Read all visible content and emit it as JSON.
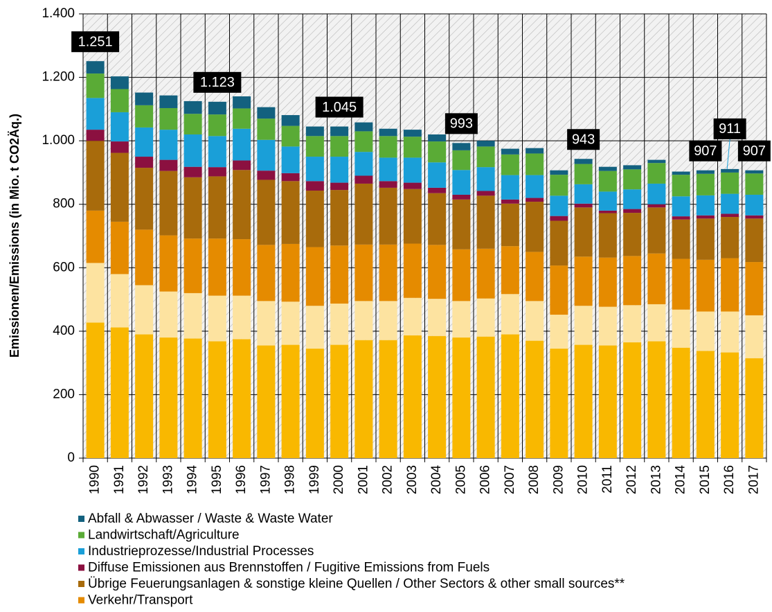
{
  "chart_data": {
    "type": "bar",
    "stacked": true,
    "y_label": "Emissionen/Emissions (in Mio. t CO2Äq.)",
    "categories": [
      "1990",
      "1991",
      "1992",
      "1993",
      "1994",
      "1995",
      "1996",
      "1997",
      "1998",
      "1999",
      "2000",
      "2001",
      "2002",
      "2003",
      "2004",
      "2005",
      "2006",
      "2007",
      "2008",
      "2009",
      "2010",
      "2011",
      "2012",
      "2013",
      "2014",
      "2015",
      "2016",
      "2017"
    ],
    "series": [
      {
        "color": "#f9b800",
        "values": [
          427,
          412,
          390,
          380,
          377,
          368,
          375,
          355,
          357,
          345,
          357,
          372,
          372,
          387,
          385,
          380,
          383,
          390,
          370,
          345,
          357,
          355,
          365,
          368,
          348,
          338,
          333,
          315
        ]
      },
      {
        "color": "#fde3a0",
        "values": [
          188,
          168,
          155,
          145,
          143,
          144,
          137,
          140,
          136,
          135,
          130,
          123,
          123,
          118,
          117,
          115,
          120,
          127,
          125,
          107,
          123,
          122,
          117,
          117,
          120,
          124,
          129,
          135
        ]
      },
      {
        "name": "Verkehr/Transport",
        "color": "#e58b00",
        "values": [
          165,
          165,
          175,
          177,
          172,
          180,
          178,
          177,
          182,
          185,
          183,
          178,
          178,
          171,
          170,
          163,
          157,
          151,
          155,
          155,
          155,
          155,
          155,
          160,
          160,
          163,
          168,
          168
        ]
      },
      {
        "name": "Übrige Feuerungsanlagen & sonstige kleine Quellen / Other Sectors & other small sources**",
        "color": "#a86b0c",
        "values": [
          220,
          217,
          195,
          203,
          193,
          196,
          218,
          205,
          198,
          178,
          175,
          192,
          179,
          172,
          163,
          157,
          167,
          134,
          158,
          141,
          155,
          140,
          136,
          145,
          124,
          130,
          130,
          137
        ]
      },
      {
        "name": "Diffuse Emissionen aus Brennstoffen / Fugitive Emissions from Fuels",
        "color": "#8b1040",
        "values": [
          35,
          36,
          35,
          35,
          33,
          29,
          30,
          29,
          25,
          30,
          23,
          25,
          21,
          20,
          17,
          15,
          15,
          13,
          12,
          15,
          12,
          8,
          12,
          10,
          10,
          10,
          10,
          10
        ]
      },
      {
        "name": "Industrieprozesse/Industrial Processes",
        "color": "#1a9fd8",
        "values": [
          100,
          92,
          92,
          95,
          102,
          98,
          100,
          97,
          84,
          77,
          82,
          75,
          74,
          79,
          80,
          78,
          75,
          77,
          72,
          64,
          61,
          60,
          62,
          65,
          63,
          63,
          63,
          65
        ]
      },
      {
        "name": "Landwirtschaft/Agriculture",
        "color": "#5aab36",
        "values": [
          77,
          73,
          70,
          68,
          65,
          68,
          64,
          67,
          65,
          65,
          65,
          65,
          68,
          66,
          66,
          62,
          65,
          65,
          68,
          66,
          64,
          65,
          63,
          65,
          68,
          68,
          67,
          67
        ]
      },
      {
        "name": "Abfall & Abwasser / Waste & Waste Water",
        "color": "#13617f",
        "values": [
          39,
          40,
          40,
          40,
          40,
          40,
          38,
          36,
          34,
          30,
          30,
          28,
          23,
          22,
          22,
          23,
          18,
          18,
          17,
          14,
          16,
          13,
          13,
          10,
          10,
          11,
          11,
          10
        ]
      }
    ],
    "annotations": [
      {
        "category": "1990",
        "value": 1251,
        "label": "1.251"
      },
      {
        "category": "1995",
        "value": 1123,
        "label": "1.123"
      },
      {
        "category": "2000",
        "value": 1045,
        "label": "1.045"
      },
      {
        "category": "2005",
        "value": 993,
        "label": "993"
      },
      {
        "category": "2010",
        "value": 943,
        "label": "943"
      },
      {
        "category": "2015",
        "value": 907,
        "label": "907"
      },
      {
        "category": "2016",
        "value": 911,
        "label": "911"
      },
      {
        "category": "2017",
        "value": 907,
        "label": "907"
      }
    ],
    "ylim": [
      0,
      1400
    ],
    "yticks": [
      0,
      200,
      400,
      600,
      800,
      {
        "value": 1000,
        "label": "1.000"
      },
      {
        "value": 1200,
        "label": "1.200"
      },
      {
        "value": 1400,
        "label": "1.400"
      }
    ],
    "grid": true
  }
}
